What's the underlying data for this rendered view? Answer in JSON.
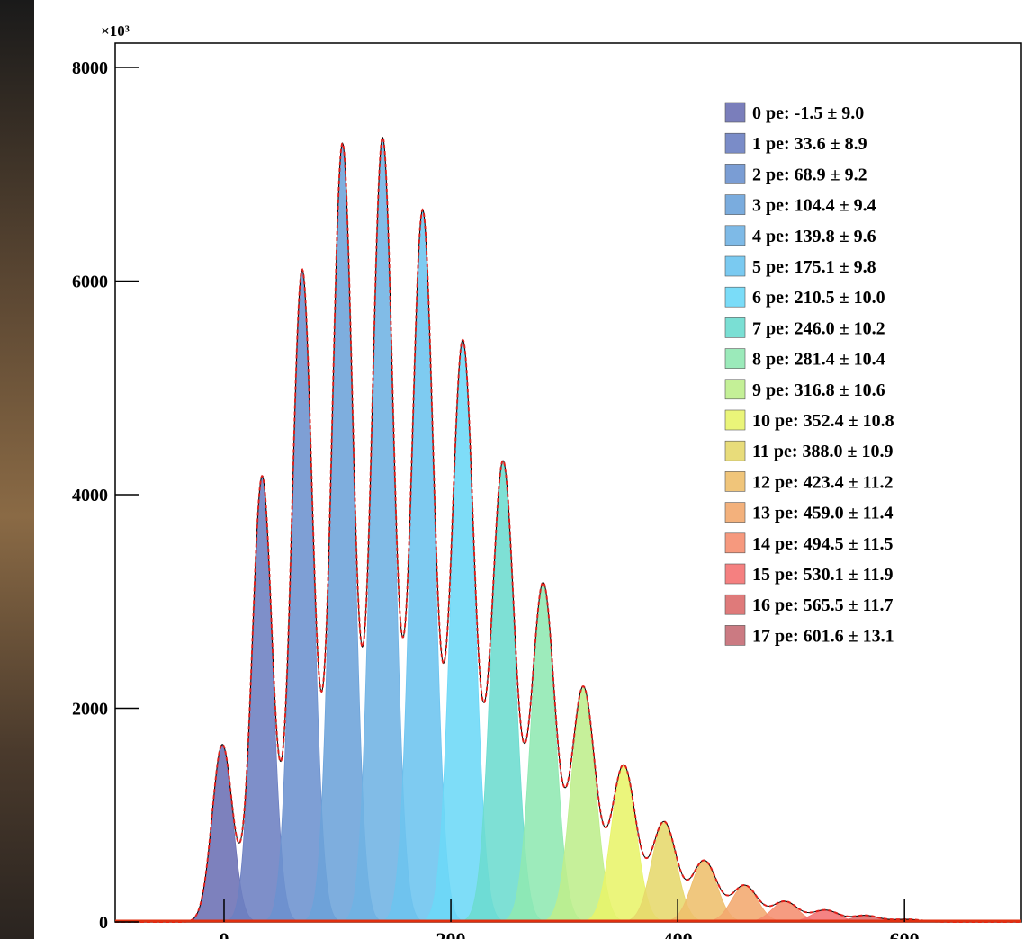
{
  "chart_data": {
    "type": "gaussian",
    "axis_multiplier": "×10³",
    "xlim": [
      -96,
      703
    ],
    "ylim": [
      0,
      8000
    ],
    "xticks": [
      0,
      200,
      400,
      600
    ],
    "yticks": [
      0,
      2000,
      4000,
      6000,
      8000
    ],
    "series": [
      {
        "name": "0 pe:  -1.5  ± 9.0",
        "color": "#6b70b4",
        "mean": -1.5,
        "sigma": 9.0,
        "amplitude": 1660
      },
      {
        "name": "1 pe:  33.6  ± 8.9",
        "color": "#6c80c2",
        "mean": 33.6,
        "sigma": 8.9,
        "amplitude": 4170
      },
      {
        "name": "2 pe:  68.9  ± 9.2",
        "color": "#6c92cf",
        "mean": 68.9,
        "sigma": 9.2,
        "amplitude": 6100
      },
      {
        "name": "3 pe: 104.4  ± 9.4",
        "color": "#6ca3da",
        "mean": 104.4,
        "sigma": 9.4,
        "amplitude": 7280
      },
      {
        "name": "4 pe: 139.8  ± 9.6",
        "color": "#70b3e4",
        "mean": 139.8,
        "sigma": 9.6,
        "amplitude": 7330
      },
      {
        "name": "5 pe: 175.1  ± 9.8",
        "color": "#6cc4ef",
        "mean": 175.1,
        "sigma": 9.8,
        "amplitude": 6650
      },
      {
        "name": "6 pe: 210.5  ± 10.0",
        "color": "#6cd8f7",
        "mean": 210.5,
        "sigma": 10.0,
        "amplitude": 5430
      },
      {
        "name": "7 pe: 246.0  ± 10.2",
        "color": "#6cdccf",
        "mean": 246.0,
        "sigma": 10.2,
        "amplitude": 4300
      },
      {
        "name": "8 pe: 281.4  ± 10.4",
        "color": "#90e8b2",
        "mean": 281.4,
        "sigma": 10.4,
        "amplitude": 3160
      },
      {
        "name": "9 pe: 316.8  ± 10.6",
        "color": "#beee8c",
        "mean": 316.8,
        "sigma": 10.6,
        "amplitude": 2190
      },
      {
        "name": "10 pe: 352.4  ± 10.8",
        "color": "#e8f46a",
        "mean": 352.4,
        "sigma": 10.8,
        "amplitude": 1460
      },
      {
        "name": "11 pe: 388.0  ± 10.9",
        "color": "#e6d86c",
        "mean": 388.0,
        "sigma": 10.9,
        "amplitude": 930
      },
      {
        "name": "12 pe: 423.4  ± 11.2",
        "color": "#eebf6c",
        "mean": 423.4,
        "sigma": 11.2,
        "amplitude": 570
      },
      {
        "name": "13 pe: 459.0  ± 11.4",
        "color": "#f2a86e",
        "mean": 459.0,
        "sigma": 11.4,
        "amplitude": 340
      },
      {
        "name": "14 pe: 494.5  ± 11.5",
        "color": "#f58e70",
        "mean": 494.5,
        "sigma": 11.5,
        "amplitude": 190
      },
      {
        "name": "15 pe: 530.1  ± 11.9",
        "color": "#f47272",
        "mean": 530.1,
        "sigma": 11.9,
        "amplitude": 110
      },
      {
        "name": "16 pe: 565.5  ± 11.7",
        "color": "#dc6c6c",
        "mean": 565.5,
        "sigma": 11.7,
        "amplitude": 60
      },
      {
        "name": "17 pe: 601.6  ± 13.1",
        "color": "#c56c74",
        "mean": 601.6,
        "sigma": 13.1,
        "amplitude": 25
      }
    ]
  }
}
